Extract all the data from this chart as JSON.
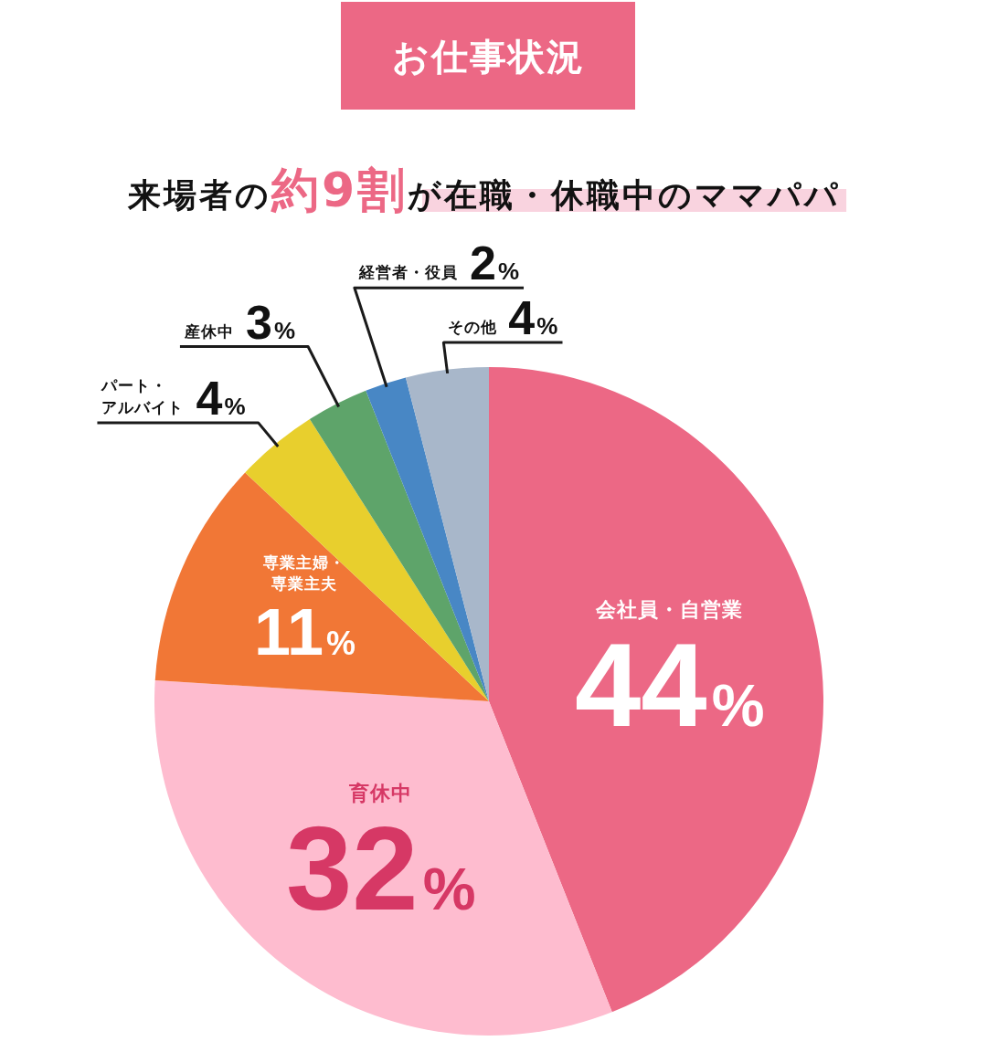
{
  "chart_data": {
    "type": "pie",
    "title": "お仕事状況",
    "subtitle": "来場者の**約9割**が在職・休職中のママパパ",
    "categories": [
      "会社員・自営業",
      "育休中",
      "専業主婦・専業主夫",
      "パート・アルバイト",
      "産休中",
      "経営者・役員",
      "その他"
    ],
    "values": [
      44,
      32,
      11,
      4,
      3,
      2,
      4
    ],
    "colors": [
      "#ec6885",
      "#febccf",
      "#f17736",
      "#e8cf2d",
      "#5ea46a",
      "#4887c5",
      "#a8b7ca"
    ],
    "value_labels": [
      "44%",
      "32%",
      "11%",
      "4%",
      "3%",
      "2%",
      "4%"
    ]
  }
}
